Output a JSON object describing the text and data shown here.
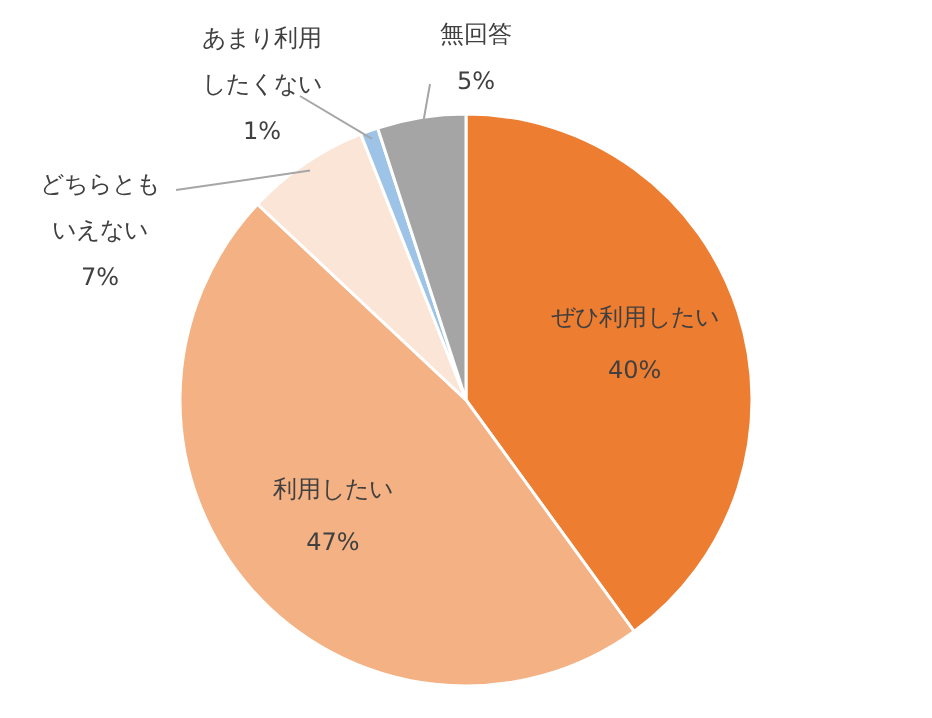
{
  "chart_data": {
    "type": "pie",
    "categories": [
      "ぜひ利用したい",
      "利用したい",
      "どちらともいえない",
      "あまり利用したくない",
      "無回答"
    ],
    "values": [
      40,
      47,
      7,
      1,
      5
    ],
    "value_labels": [
      "40%",
      "47%",
      "7%",
      "1%",
      "5%"
    ],
    "colors": [
      "#ed7d31",
      "#f4b183",
      "#fbe5d6",
      "#9dc3e6",
      "#a5a5a5"
    ]
  }
}
